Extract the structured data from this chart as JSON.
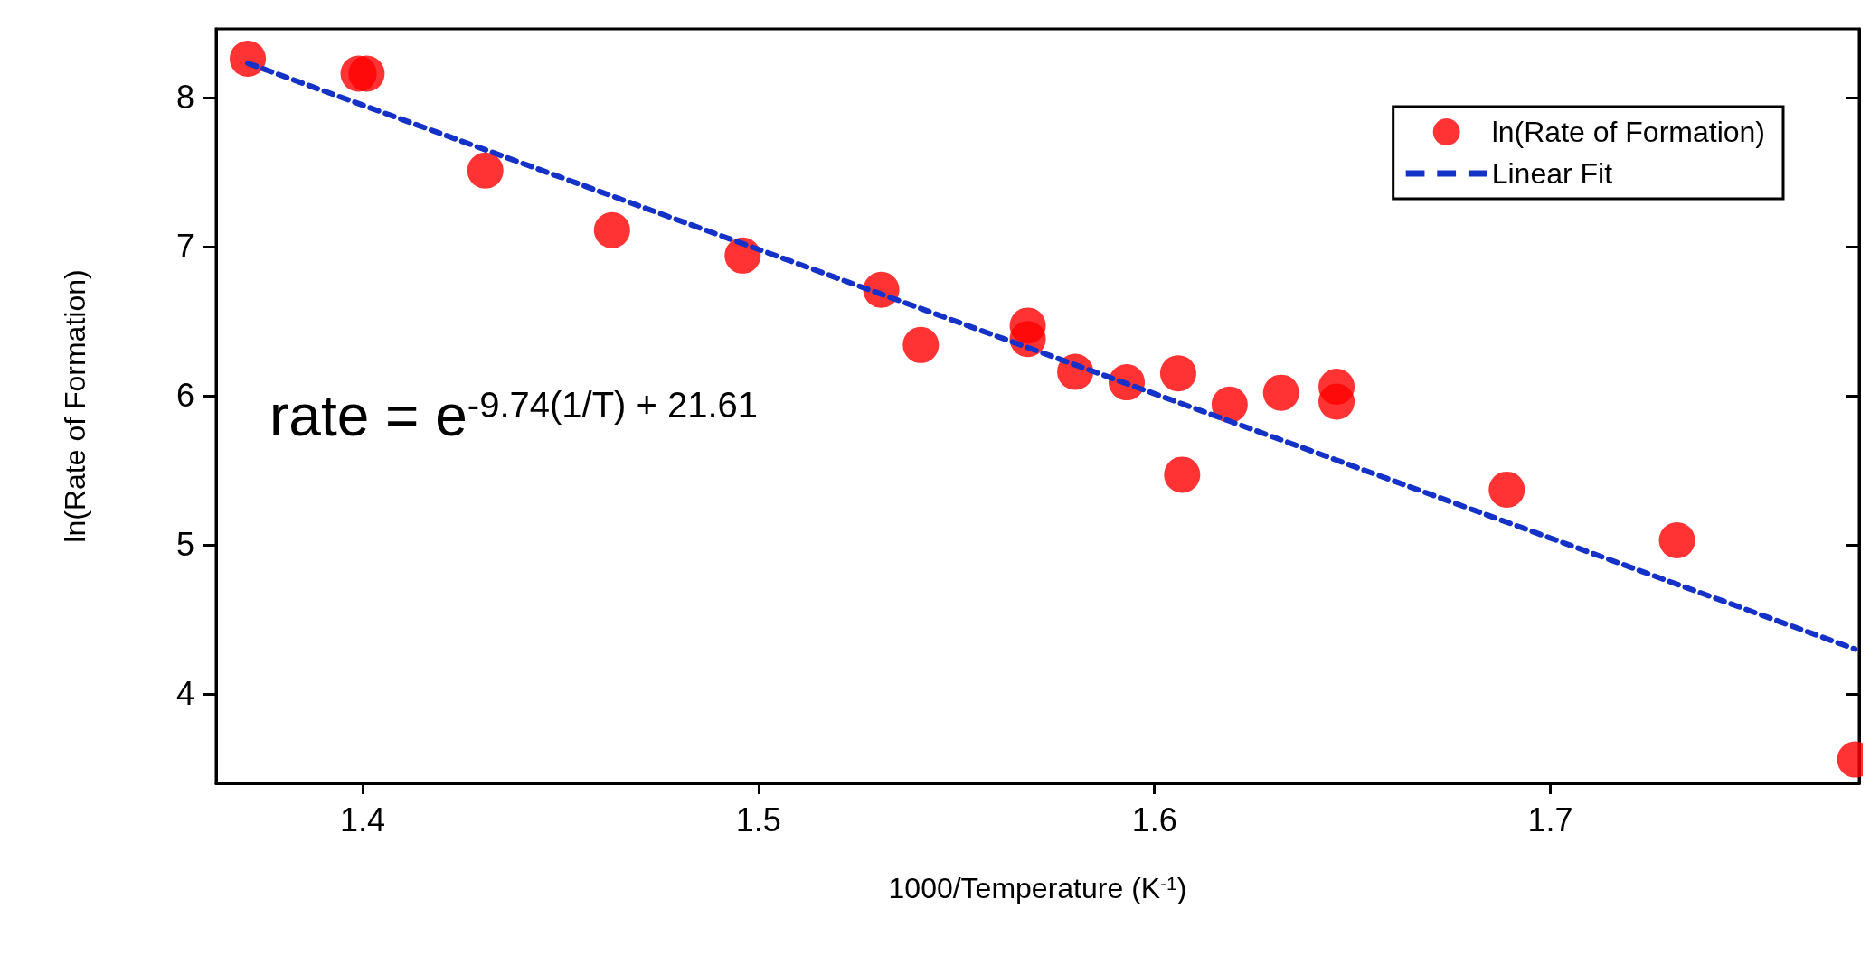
{
  "chart_data": {
    "type": "scatter",
    "xlabel": "1000/Temperature (K$^{-1}$)",
    "ylabel": "ln(Rate of Formation)",
    "xlim": [
      1.363,
      1.778
    ],
    "xticks": [
      1.4,
      1.5,
      1.6,
      1.7
    ],
    "ylim": [
      3.4,
      8.46
    ],
    "yticks": [
      4,
      5,
      6,
      7,
      8
    ],
    "legend": "top right",
    "grid": false,
    "marker": "circle",
    "annotations": [
      "rate = e$^{-9.74(1/T) + 21.61}$"
    ],
    "series": [
      {
        "name": "ln(Rate of Formation)",
        "color": "#ff0000",
        "x": [
          1.371,
          1.399,
          1.401,
          1.431,
          1.463,
          1.496,
          1.531,
          1.541,
          1.568,
          1.568,
          1.58,
          1.593,
          1.606,
          1.607,
          1.619,
          1.632,
          1.646,
          1.646,
          1.689,
          1.732,
          1.777
        ],
        "values": [
          8.26,
          8.16,
          8.16,
          7.51,
          7.11,
          6.94,
          6.71,
          6.34,
          6.47,
          6.38,
          6.16,
          6.09,
          6.15,
          5.47,
          5.94,
          6.02,
          6.06,
          5.96,
          5.37,
          5.03,
          3.56
        ]
      },
      {
        "name": "Linear Fit",
        "color": "#1432c8",
        "type": "line",
        "line_style": "dashed",
        "marker": "none",
        "x": [
          1.371,
          1.777
        ],
        "values": [
          8.23,
          4.3
        ]
      }
    ]
  }
}
